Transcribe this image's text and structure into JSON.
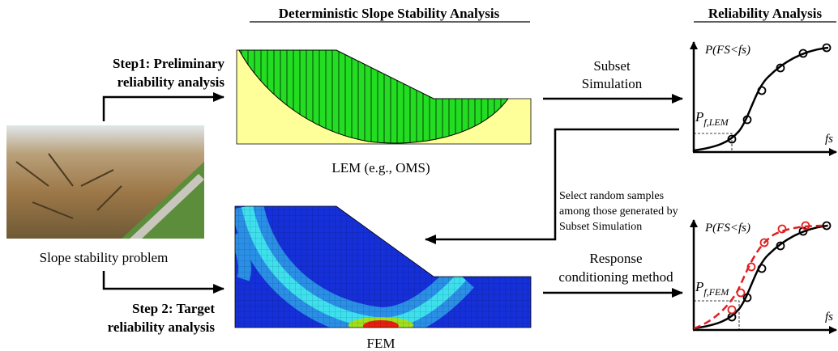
{
  "header": {
    "deterministic_title": "Deterministic Slope Stability Analysis",
    "reliability_title": "Reliability Analysis"
  },
  "step1": {
    "lines": [
      "Step1: Preliminary",
      "reliability analysis"
    ]
  },
  "step2": {
    "lines": [
      "Step 2: Target",
      "reliability analysis"
    ]
  },
  "photo_caption": "Slope stability problem",
  "lem_caption": "LEM (e.g., OMS)",
  "fem_caption": "FEM",
  "subset_arrow": {
    "lines": [
      "Subset",
      "Simulation"
    ]
  },
  "select_note": {
    "lines": [
      "Select random samples",
      "among those generated by",
      "Subset Simulation"
    ]
  },
  "response_arrow": {
    "lines": [
      "Response",
      "conditioning method"
    ]
  },
  "plot1": {
    "y_label": "P(FS<fs)",
    "pf_symbol": "P",
    "pf_subscript": "f,LEM",
    "x_label": "fs"
  },
  "plot2": {
    "y_label": "P(FS<fs)",
    "pf_symbol": "P",
    "pf_subscript": "f,FEM",
    "x_label": "fs"
  }
}
